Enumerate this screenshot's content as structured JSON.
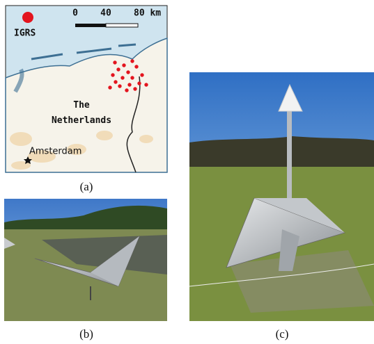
{
  "map": {
    "legend_label": "IGRS",
    "scale_bar": {
      "labels": [
        "0",
        "40",
        "80 km"
      ]
    },
    "country_label": "The\nNetherlands",
    "city_label": "Amsterdam"
  },
  "captions": {
    "a": "(a)",
    "b": "(b)",
    "c": "(c)"
  }
}
